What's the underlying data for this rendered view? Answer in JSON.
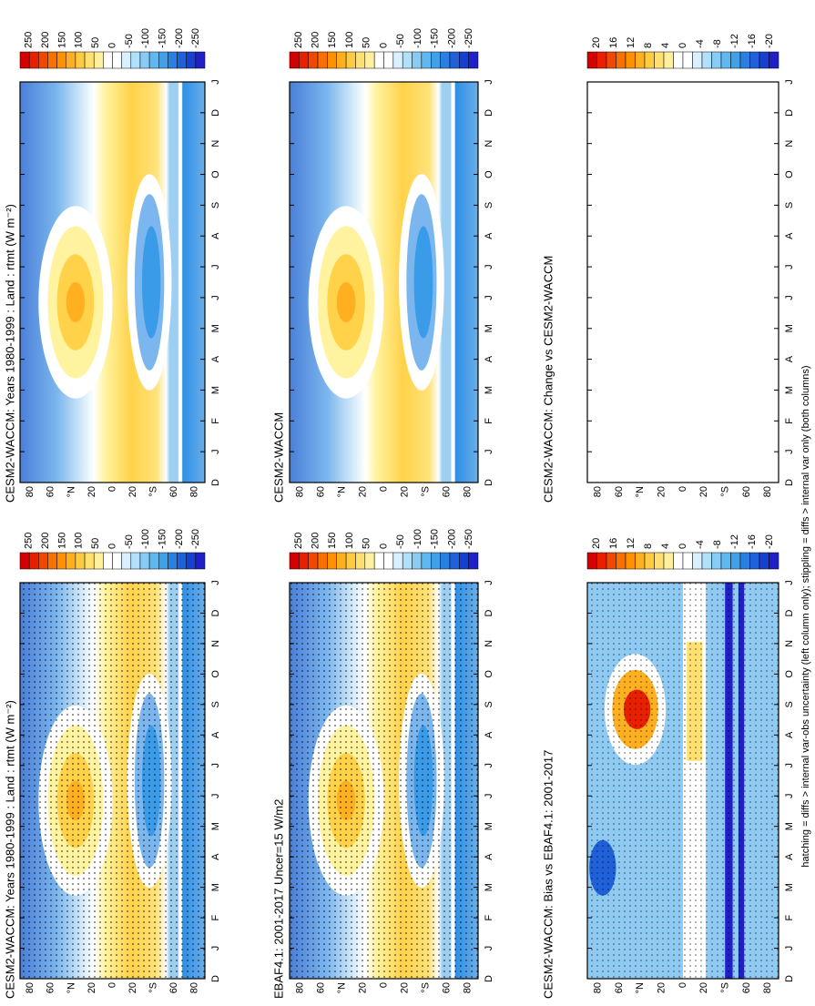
{
  "panels": [
    {
      "title": "CESM2-WACCM: Years 1980-1999 : Land : rtmt (W m⁻²)",
      "colorbar_labels": [
        250,
        200,
        150,
        100,
        50,
        0,
        -50,
        -100,
        -150,
        -200,
        -250
      ]
    },
    {
      "title": "EBAF4.1: 2001-2017 Uncer=15 W/m2",
      "colorbar_labels": [
        250,
        200,
        150,
        100,
        50,
        0,
        -50,
        -100,
        -150,
        -200,
        -250
      ]
    },
    {
      "title": "CESM2-WACCM: Bias vs EBAF4.1: 2001-2017",
      "colorbar_labels": [
        20,
        16,
        12,
        8,
        4,
        0,
        -4,
        -8,
        -12,
        -16,
        -20
      ]
    },
    {
      "title": "CESM2-WACCM: Years 1980-1999 : Land : rtmt (W m⁻²)",
      "colorbar_labels": [
        250,
        200,
        150,
        100,
        50,
        0,
        -50,
        -100,
        -150,
        -200,
        -250
      ]
    },
    {
      "title": "CESM2-WACCM",
      "colorbar_labels": [
        250,
        200,
        150,
        100,
        50,
        0,
        -50,
        -100,
        -150,
        -200,
        -250
      ]
    },
    {
      "title": "CESM2-WACCM: Change vs CESM2-WACCM",
      "colorbar_labels": [
        20,
        16,
        12,
        8,
        4,
        0,
        -4,
        -8,
        -12,
        -16,
        -20
      ]
    }
  ],
  "lat_labels": [
    80,
    60,
    "°N",
    20,
    0,
    20,
    "°S",
    60,
    80
  ],
  "month_labels": [
    "D",
    "J",
    "F",
    "M",
    "A",
    "M",
    "J",
    "J",
    "A",
    "S",
    "O",
    "N",
    "D",
    "J"
  ],
  "footnote": "hatching = diffs > internal var-obs uncertainty (left column only); stippling = diffs > internal var only (both columns)"
}
